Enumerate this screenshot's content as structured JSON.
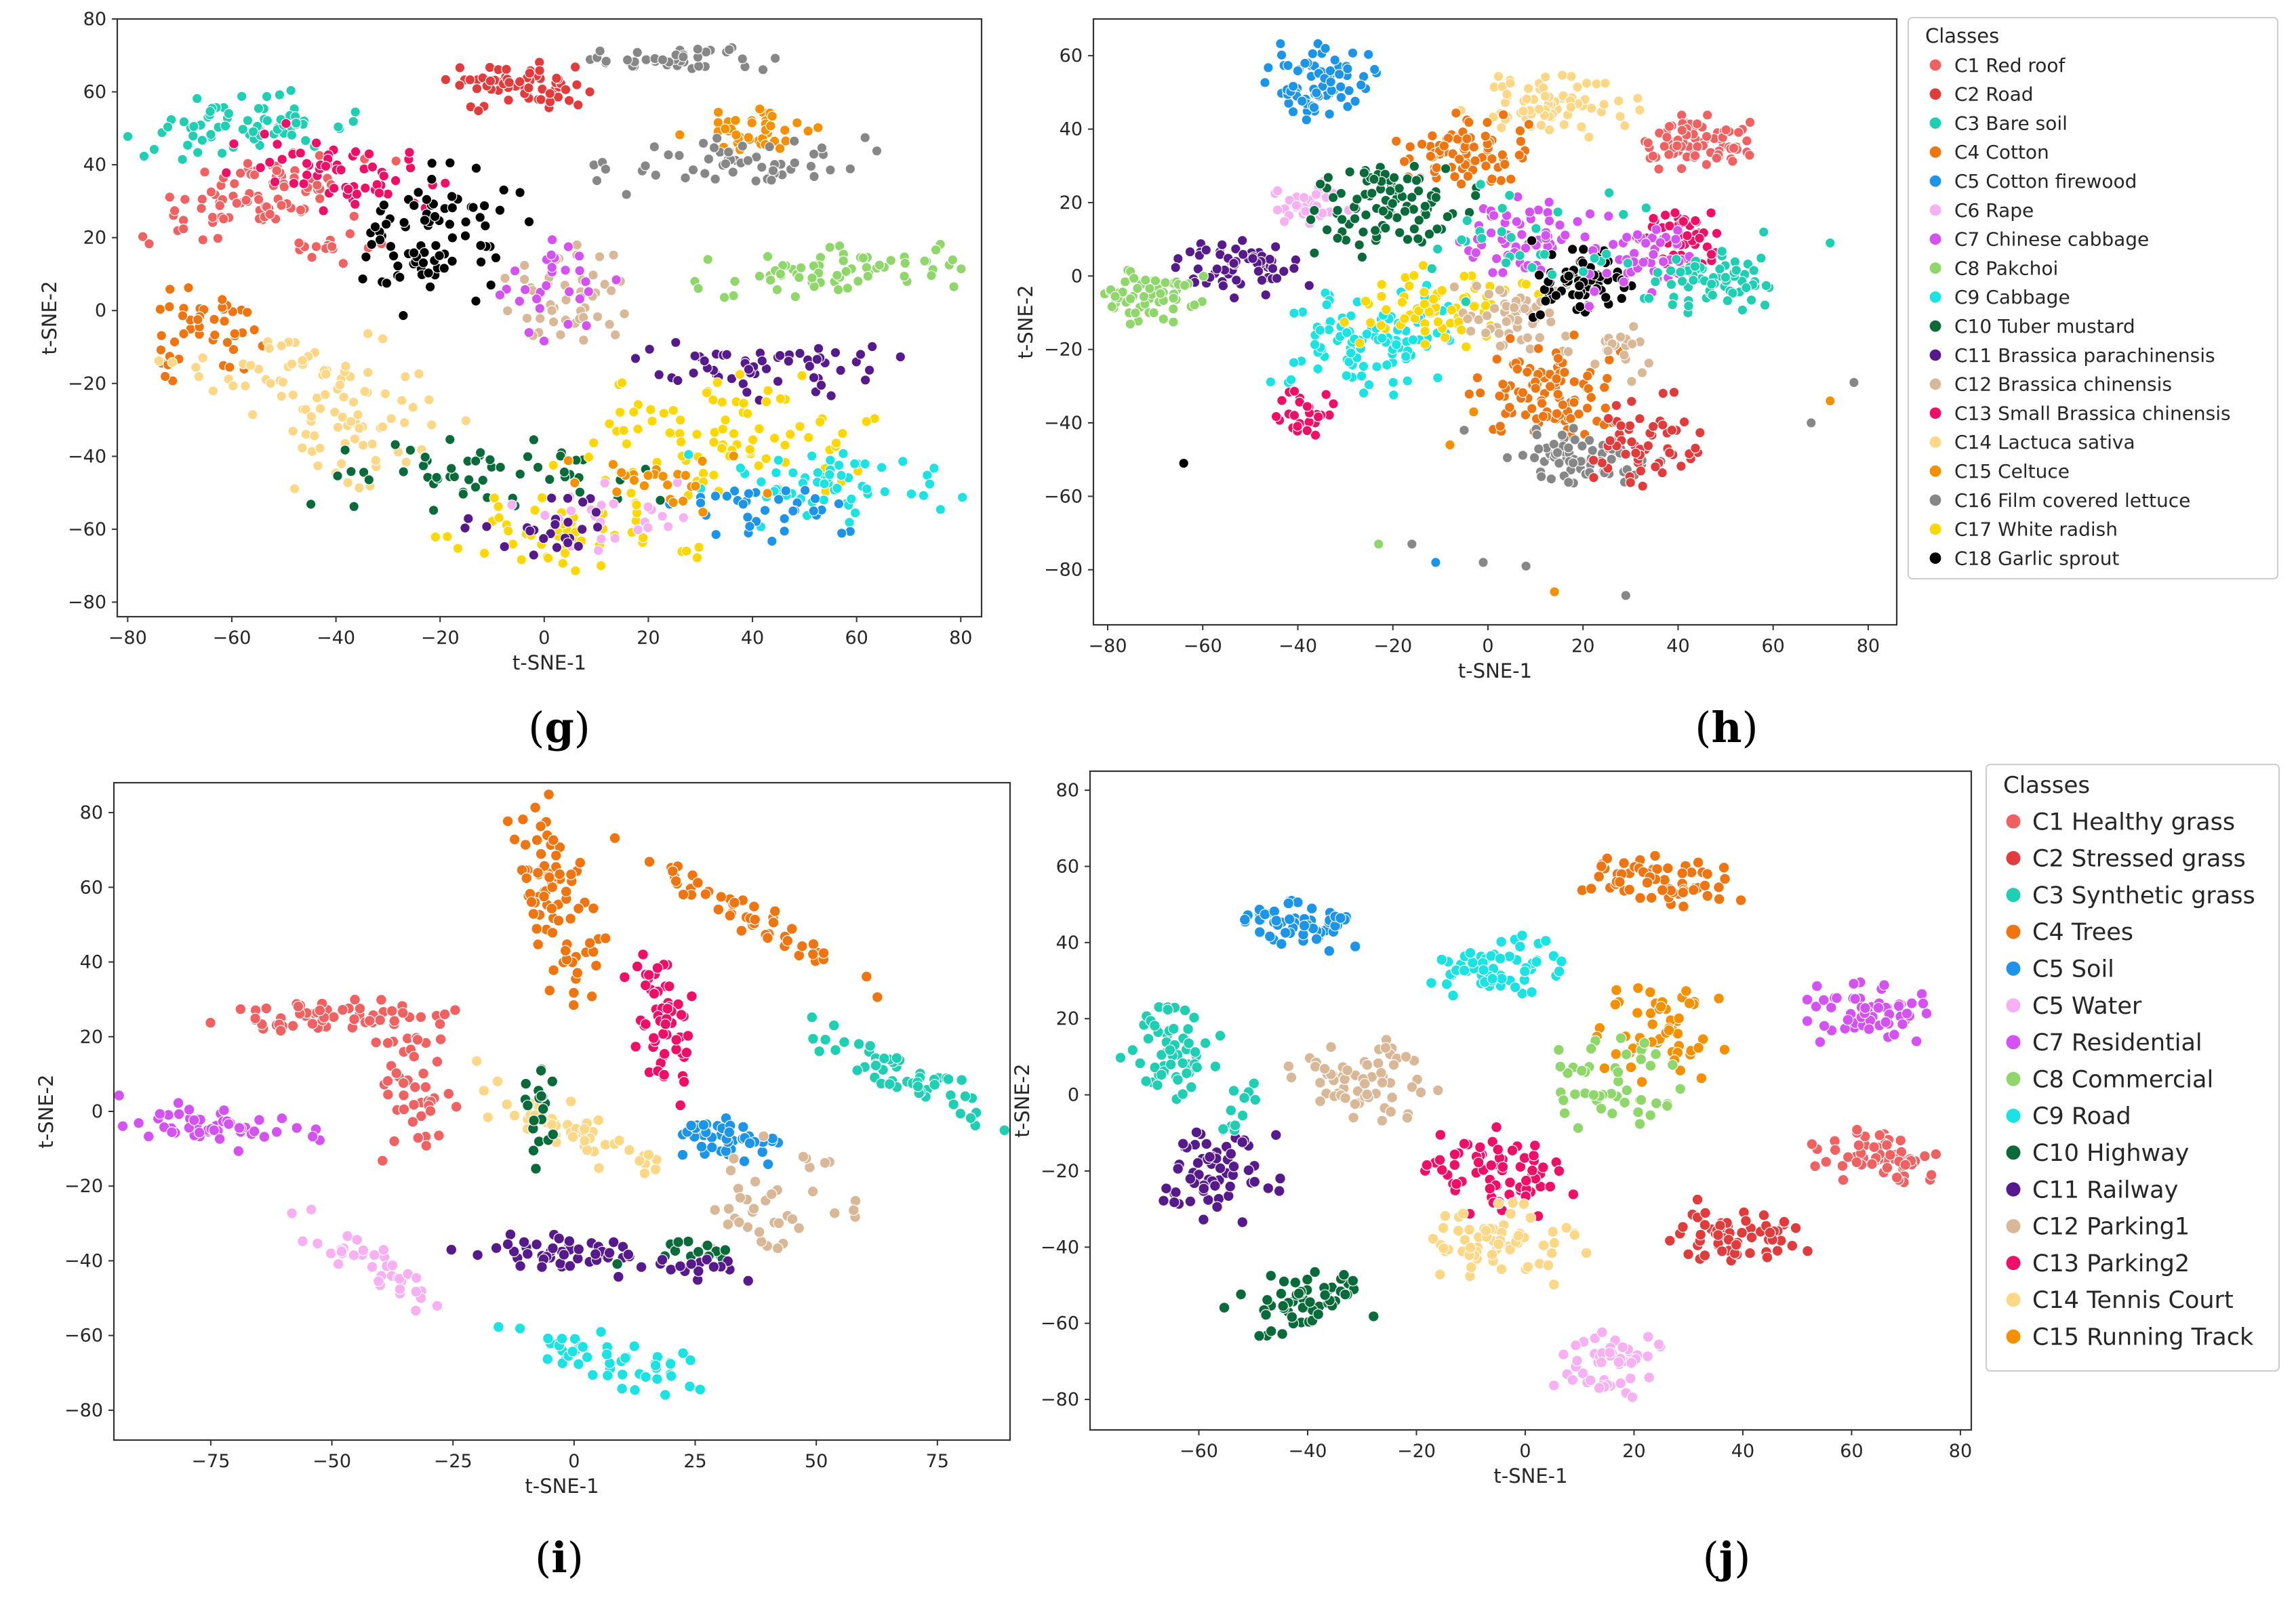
{
  "figure": {
    "panels": [
      {
        "id": "g",
        "label_open": "(",
        "letter": "g",
        "label_close": ")"
      },
      {
        "id": "h",
        "label_open": "(",
        "letter": "h",
        "label_close": ")"
      },
      {
        "id": "i",
        "label_open": "(",
        "letter": "i",
        "label_close": ")"
      },
      {
        "id": "j",
        "label_open": "(",
        "letter": "j",
        "label_close": ")"
      }
    ]
  },
  "chart_data": [
    {
      "id": "g",
      "type": "scatter",
      "title": "",
      "xlabel": "t-SNE-1",
      "ylabel": "t-SNE-2",
      "xlim": [
        -82,
        84
      ],
      "ylim": [
        -84,
        80
      ],
      "xticks": [
        -80,
        -60,
        -40,
        -20,
        0,
        20,
        40,
        60,
        80
      ],
      "yticks": [
        -80,
        -60,
        -40,
        -20,
        0,
        20,
        40,
        60,
        80
      ],
      "legend_ref": "h",
      "clusters": [
        {
          "class": 1,
          "cx": -55,
          "cy": 32,
          "sx": 12,
          "sy": 5,
          "n": 90,
          "rot": 0.3
        },
        {
          "class": 1,
          "cx": -40,
          "cy": 17,
          "sx": 5,
          "sy": 2,
          "n": 16,
          "rot": 0
        },
        {
          "class": 2,
          "cx": -5,
          "cy": 62,
          "sx": 7,
          "sy": 3,
          "n": 65,
          "rot": 0
        },
        {
          "class": 3,
          "cx": -58,
          "cy": 50,
          "sx": 10,
          "sy": 4,
          "n": 75,
          "rot": 0.1
        },
        {
          "class": 4,
          "cx": -65,
          "cy": -7,
          "sx": 5,
          "sy": 6,
          "n": 45,
          "rot": 0
        },
        {
          "class": 15,
          "cx": 42,
          "cy": 50,
          "sx": 10,
          "sy": 3,
          "n": 40,
          "rot": 0.2
        },
        {
          "class": 16,
          "cx": 25,
          "cy": 69,
          "sx": 9,
          "sy": 1.5,
          "n": 40,
          "rot": 0
        },
        {
          "class": 16,
          "cx": 38,
          "cy": 41,
          "sx": 12,
          "sy": 4,
          "n": 55,
          "rot": 0
        },
        {
          "class": 8,
          "cx": 57,
          "cy": 11,
          "sx": 13,
          "sy": 3,
          "n": 70,
          "rot": 0.1
        },
        {
          "class": 13,
          "cx": -40,
          "cy": 38,
          "sx": 12,
          "sy": 5,
          "n": 60,
          "rot": -0.3
        },
        {
          "class": 18,
          "cx": -22,
          "cy": 20,
          "sx": 8,
          "sy": 10,
          "n": 85,
          "rot": -0.6
        },
        {
          "class": 12,
          "cx": 5,
          "cy": 5,
          "sx": 6,
          "sy": 8,
          "n": 45,
          "rot": 0
        },
        {
          "class": 7,
          "cx": 3,
          "cy": 8,
          "sx": 6,
          "sy": 7,
          "n": 30,
          "rot": 0
        },
        {
          "class": 14,
          "cx": -35,
          "cy": -28,
          "sx": 9,
          "sy": 10,
          "n": 70,
          "rot": 0.4
        },
        {
          "class": 14,
          "cx": -55,
          "cy": -15,
          "sx": 8,
          "sy": 4,
          "n": 30,
          "rot": 0
        },
        {
          "class": 10,
          "cx": -10,
          "cy": -45,
          "sx": 15,
          "sy": 5,
          "n": 55,
          "rot": 0
        },
        {
          "class": 11,
          "cx": 45,
          "cy": -15,
          "sx": 12,
          "sy": 4,
          "n": 55,
          "rot": 0
        },
        {
          "class": 17,
          "cx": 35,
          "cy": -35,
          "sx": 15,
          "sy": 8,
          "n": 90,
          "rot": 0
        },
        {
          "class": 17,
          "cx": 5,
          "cy": -62,
          "sx": 12,
          "sy": 5,
          "n": 55,
          "rot": 0
        },
        {
          "class": 9,
          "cx": 55,
          "cy": -48,
          "sx": 12,
          "sy": 5,
          "n": 60,
          "rot": 0
        },
        {
          "class": 5,
          "cx": 45,
          "cy": -55,
          "sx": 10,
          "sy": 4,
          "n": 35,
          "rot": 0
        },
        {
          "class": 6,
          "cx": 10,
          "cy": -55,
          "sx": 10,
          "sy": 5,
          "n": 25,
          "rot": 0
        },
        {
          "class": 11,
          "cx": 0,
          "cy": -60,
          "sx": 8,
          "sy": 5,
          "n": 25,
          "rot": 0
        },
        {
          "class": 15,
          "cx": 20,
          "cy": -45,
          "sx": 10,
          "sy": 5,
          "n": 25,
          "rot": 0
        }
      ]
    },
    {
      "id": "h",
      "type": "scatter",
      "title": "",
      "xlabel": "t-SNE-1",
      "ylabel": "t-SNE-2",
      "xlim": [
        -83,
        86
      ],
      "ylim": [
        -95,
        70
      ],
      "xticks": [
        -80,
        -60,
        -40,
        -20,
        0,
        20,
        40,
        60,
        80
      ],
      "yticks": [
        -80,
        -60,
        -40,
        -20,
        0,
        20,
        40,
        60
      ],
      "legend": {
        "title": "Classes",
        "placement": "outside-right",
        "entries": [
          {
            "label": "C1 Red roof",
            "color": "#f06262"
          },
          {
            "label": "C2 Road",
            "color": "#e23b3b"
          },
          {
            "label": "C3 Bare soil",
            "color": "#1fcfb3"
          },
          {
            "label": "C4 Cotton",
            "color": "#ef7511"
          },
          {
            "label": "C5 Cotton firewood",
            "color": "#1c95e8"
          },
          {
            "label": "C6 Rape",
            "color": "#f7b1f3"
          },
          {
            "label": "C7 Chinese cabbage",
            "color": "#d552f2"
          },
          {
            "label": "C8 Pakchoi",
            "color": "#8fd76a"
          },
          {
            "label": "C9 Cabbage",
            "color": "#1ae3e3"
          },
          {
            "label": "C10 Tuber mustard",
            "color": "#0a6b3a"
          },
          {
            "label": "C11 Brassica parachinensis",
            "color": "#561a8c"
          },
          {
            "label": "C12 Brassica chinensis",
            "color": "#d9b897"
          },
          {
            "label": "C13 Small Brassica chinensis",
            "color": "#f00f67"
          },
          {
            "label": "C14 Lactuca sativa",
            "color": "#fcd785"
          },
          {
            "label": "C15 Celtuce",
            "color": "#f59100"
          },
          {
            "label": "C16 Film covered lettuce",
            "color": "#878787"
          },
          {
            "label": "C17 White radish",
            "color": "#fcd800"
          },
          {
            "label": "C18 Garlic sprout",
            "color": "#000000"
          }
        ]
      },
      "clusters": [
        {
          "class": 5,
          "cx": -35,
          "cy": 53,
          "sx": 5,
          "sy": 4.5,
          "n": 80,
          "rot": 0
        },
        {
          "class": 14,
          "cx": 13,
          "cy": 47,
          "sx": 8,
          "sy": 4,
          "n": 70,
          "rot": 0
        },
        {
          "class": 4,
          "cx": -5,
          "cy": 34,
          "sx": 7,
          "sy": 5,
          "n": 80,
          "rot": 0
        },
        {
          "class": 1,
          "cx": 43,
          "cy": 37,
          "sx": 6,
          "sy": 4,
          "n": 75,
          "rot": 0
        },
        {
          "class": 6,
          "cx": -38,
          "cy": 19,
          "sx": 4,
          "sy": 3,
          "n": 40,
          "rot": 0
        },
        {
          "class": 10,
          "cx": -20,
          "cy": 19,
          "sx": 8,
          "sy": 6,
          "n": 95,
          "rot": 0
        },
        {
          "class": 11,
          "cx": -52,
          "cy": 3,
          "sx": 7,
          "sy": 4,
          "n": 60,
          "rot": 0
        },
        {
          "class": 8,
          "cx": -72,
          "cy": -5,
          "sx": 6,
          "sy": 4,
          "n": 60,
          "rot": 0
        },
        {
          "class": 9,
          "cx": -25,
          "cy": -18,
          "sx": 9,
          "sy": 7,
          "n": 100,
          "rot": 0
        },
        {
          "class": 17,
          "cx": -10,
          "cy": -8,
          "sx": 9,
          "sy": 5,
          "n": 70,
          "rot": 0
        },
        {
          "class": 7,
          "cx": 8,
          "cy": 10,
          "sx": 7,
          "sy": 5,
          "n": 60,
          "rot": 0
        },
        {
          "class": 12,
          "cx": 5,
          "cy": -12,
          "sx": 6,
          "sy": 5,
          "n": 55,
          "rot": 0
        },
        {
          "class": 18,
          "cx": 20,
          "cy": -2,
          "sx": 5,
          "sy": 5,
          "n": 75,
          "rot": 0
        },
        {
          "class": 13,
          "cx": 40,
          "cy": 10,
          "sx": 4,
          "sy": 4,
          "n": 50,
          "rot": 0
        },
        {
          "class": 7,
          "cx": 33,
          "cy": 5,
          "sx": 6,
          "sy": 6,
          "n": 50,
          "rot": 0
        },
        {
          "class": 3,
          "cx": 47,
          "cy": -2,
          "sx": 6,
          "sy": 4,
          "n": 65,
          "rot": 0
        },
        {
          "class": 4,
          "cx": 12,
          "cy": -32,
          "sx": 7,
          "sy": 7,
          "n": 95,
          "rot": 0
        },
        {
          "class": 16,
          "cx": 20,
          "cy": -50,
          "sx": 7,
          "sy": 4,
          "n": 70,
          "rot": 0
        },
        {
          "class": 2,
          "cx": 33,
          "cy": -45,
          "sx": 6,
          "sy": 6,
          "n": 55,
          "rot": 0
        },
        {
          "class": 13,
          "cx": -38,
          "cy": -38,
          "sx": 3,
          "sy": 3,
          "n": 30,
          "rot": 0
        },
        {
          "class": 3,
          "cx": 10,
          "cy": 10,
          "sx": 12,
          "sy": 8,
          "n": 30,
          "rot": 0
        },
        {
          "class": 12,
          "cx": 28,
          "cy": -20,
          "sx": 4,
          "sy": 4,
          "n": 20,
          "rot": 0
        }
      ],
      "extra_points": [
        {
          "class": 18,
          "x": -64,
          "y": -51
        },
        {
          "class": 8,
          "x": -23,
          "y": -73
        },
        {
          "class": 16,
          "x": -16,
          "y": -73
        },
        {
          "class": 5,
          "x": -11,
          "y": -78
        },
        {
          "class": 16,
          "x": -1,
          "y": -78
        },
        {
          "class": 16,
          "x": 8,
          "y": -79
        },
        {
          "class": 15,
          "x": 14,
          "y": -86
        },
        {
          "class": 16,
          "x": 29,
          "y": -87
        },
        {
          "class": 16,
          "x": 68,
          "y": -40
        },
        {
          "class": 15,
          "x": 72,
          "y": -34
        },
        {
          "class": 16,
          "x": 77,
          "y": -29
        },
        {
          "class": 3,
          "x": 72,
          "y": 9
        },
        {
          "class": 3,
          "x": 58,
          "y": 12
        },
        {
          "class": 15,
          "x": -8,
          "y": -46
        },
        {
          "class": 16,
          "x": -5,
          "y": -42
        },
        {
          "class": 15,
          "x": -3,
          "y": -37
        }
      ]
    },
    {
      "id": "i",
      "type": "scatter",
      "title": "",
      "xlabel": "t-SNE-1",
      "ylabel": "t-SNE-2",
      "xlim": [
        -95,
        90
      ],
      "ylim": [
        -88,
        88
      ],
      "xticks": [
        -75,
        -50,
        -25,
        0,
        25,
        50,
        75
      ],
      "yticks": [
        -80,
        -60,
        -40,
        -20,
        0,
        20,
        40,
        60,
        80
      ],
      "legend_ref": "j",
      "clusters": [
        {
          "class": 4,
          "cx": -4,
          "cy": 58,
          "sx": 4,
          "sy": 14,
          "n": 85,
          "rot": 0.2
        },
        {
          "class": 4,
          "cx": 36,
          "cy": 52,
          "sx": 16,
          "sy": 2,
          "n": 55,
          "rot": -0.62
        },
        {
          "class": 13,
          "cx": 18,
          "cy": 25,
          "sx": 3,
          "sy": 10,
          "n": 60,
          "rot": 0.15
        },
        {
          "class": 3,
          "cx": 70,
          "cy": 8,
          "sx": 12,
          "sy": 2.5,
          "n": 55,
          "rot": -0.55
        },
        {
          "class": 5,
          "cx": 32,
          "cy": -7,
          "sx": 5,
          "sy": 3,
          "n": 45,
          "rot": 0
        },
        {
          "class": 1,
          "cx": -50,
          "cy": 25,
          "sx": 12,
          "sy": 2.5,
          "n": 60,
          "rot": 0.05
        },
        {
          "class": 1,
          "cx": -33,
          "cy": 5,
          "sx": 4,
          "sy": 10,
          "n": 45,
          "rot": 0
        },
        {
          "class": 7,
          "cx": -78,
          "cy": -4,
          "sx": 12,
          "sy": 3,
          "n": 55,
          "rot": -0.15
        },
        {
          "class": 14,
          "cx": 0,
          "cy": -5,
          "sx": 12,
          "sy": 3,
          "n": 55,
          "rot": -0.55
        },
        {
          "class": 10,
          "cx": -7,
          "cy": 3,
          "sx": 2,
          "sy": 8,
          "n": 20,
          "rot": 0
        },
        {
          "class": 11,
          "cx": -5,
          "cy": -38,
          "sx": 10,
          "sy": 2.5,
          "n": 50,
          "rot": -0.12
        },
        {
          "class": 12,
          "cx": 45,
          "cy": -27,
          "sx": 8,
          "sy": 8,
          "n": 40,
          "rot": -0.4
        },
        {
          "class": 6,
          "cx": -40,
          "cy": -42,
          "sx": 10,
          "sy": 2.5,
          "n": 40,
          "rot": -0.7
        },
        {
          "class": 9,
          "cx": 10,
          "cy": -67,
          "sx": 12,
          "sy": 3,
          "n": 50,
          "rot": -0.3
        },
        {
          "class": 10,
          "cx": 22,
          "cy": -38,
          "sx": 6,
          "sy": 2,
          "n": 15,
          "rot": 0
        },
        {
          "class": 11,
          "cx": 27,
          "cy": -42,
          "sx": 5,
          "sy": 2,
          "n": 15,
          "rot": 0
        }
      ]
    },
    {
      "id": "j",
      "type": "scatter",
      "title": "",
      "xlabel": "t-SNE-1",
      "ylabel": "t-SNE-2",
      "xlim": [
        -80,
        82
      ],
      "ylim": [
        -88,
        85
      ],
      "xticks": [
        -60,
        -40,
        -20,
        0,
        20,
        40,
        60,
        80
      ],
      "yticks": [
        -80,
        -60,
        -40,
        -20,
        0,
        20,
        40,
        60,
        80
      ],
      "legend": {
        "title": "Classes",
        "placement": "outside-right",
        "entries": [
          {
            "label": "C1 Healthy grass",
            "color": "#f06262"
          },
          {
            "label": "C2 Stressed grass",
            "color": "#e23b3b"
          },
          {
            "label": "C3 Synthetic grass",
            "color": "#1fcfb3"
          },
          {
            "label": "C4 Trees",
            "color": "#ef7511"
          },
          {
            "label": "C5 Soil",
            "color": "#1c95e8"
          },
          {
            "label": "C5 Water",
            "color": "#f7b1f3"
          },
          {
            "label": "C7 Residential",
            "color": "#d552f2"
          },
          {
            "label": "C8 Commercial",
            "color": "#8fd76a"
          },
          {
            "label": "C9 Road",
            "color": "#1ae3e3"
          },
          {
            "label": "C10 Highway",
            "color": "#0a6b3a"
          },
          {
            "label": "C11 Railway",
            "color": "#561a8c"
          },
          {
            "label": "C12 Parking1",
            "color": "#d9b897"
          },
          {
            "label": "C13 Parking2",
            "color": "#f00f67"
          },
          {
            "label": "C14 Tennis Court",
            "color": "#fcd785"
          },
          {
            "label": "C15 Running Track",
            "color": "#f59100"
          }
        ]
      },
      "clusters": [
        {
          "class": 4,
          "cx": 25,
          "cy": 56,
          "sx": 7,
          "sy": 3.5,
          "n": 65,
          "rot": 0
        },
        {
          "class": 5,
          "cx": -42,
          "cy": 45,
          "sx": 5,
          "sy": 4,
          "n": 55,
          "rot": 0
        },
        {
          "class": 9,
          "cx": -5,
          "cy": 33,
          "sx": 6,
          "sy": 4,
          "n": 60,
          "rot": 0
        },
        {
          "class": 7,
          "cx": 63,
          "cy": 22,
          "sx": 6,
          "sy": 4,
          "n": 60,
          "rot": 0
        },
        {
          "class": 15,
          "cx": 25,
          "cy": 17,
          "sx": 5,
          "sy": 6,
          "n": 55,
          "rot": 0
        },
        {
          "class": 8,
          "cx": 15,
          "cy": 3,
          "sx": 6,
          "sy": 6,
          "n": 50,
          "rot": 0
        },
        {
          "class": 12,
          "cx": -30,
          "cy": 5,
          "sx": 6,
          "sy": 5,
          "n": 65,
          "rot": 0
        },
        {
          "class": 3,
          "cx": -65,
          "cy": 12,
          "sx": 4,
          "sy": 7,
          "n": 55,
          "rot": 0
        },
        {
          "class": 11,
          "cx": -57,
          "cy": -20,
          "sx": 6,
          "sy": 6,
          "n": 65,
          "rot": 0
        },
        {
          "class": 13,
          "cx": -5,
          "cy": -20,
          "sx": 6,
          "sy": 5,
          "n": 70,
          "rot": 0
        },
        {
          "class": 1,
          "cx": 64,
          "cy": -16,
          "sx": 6,
          "sy": 4,
          "n": 60,
          "rot": 0
        },
        {
          "class": 2,
          "cx": 38,
          "cy": -36,
          "sx": 6,
          "sy": 4,
          "n": 60,
          "rot": 0
        },
        {
          "class": 14,
          "cx": -5,
          "cy": -40,
          "sx": 7,
          "sy": 5,
          "n": 65,
          "rot": 0
        },
        {
          "class": 10,
          "cx": -40,
          "cy": -53,
          "sx": 7,
          "sy": 4,
          "n": 55,
          "rot": 0.4
        },
        {
          "class": 6,
          "cx": 17,
          "cy": -70,
          "sx": 5,
          "sy": 5,
          "n": 50,
          "rot": 0
        },
        {
          "class": 3,
          "cx": -53,
          "cy": -5,
          "sx": 2,
          "sy": 4,
          "n": 12,
          "rot": 0
        }
      ]
    }
  ]
}
